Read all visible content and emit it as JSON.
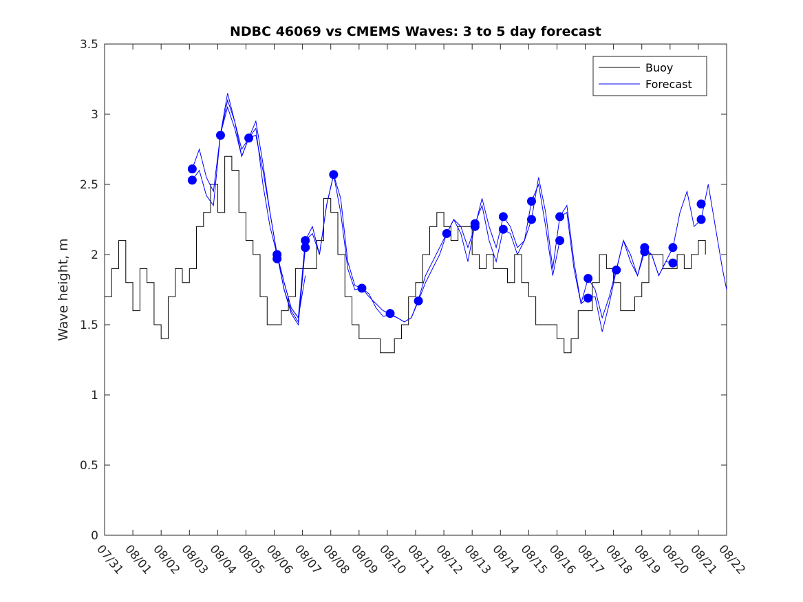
{
  "colors": {
    "buoy": "#000000",
    "forecast": "#0000ff",
    "axis": "#262626",
    "background": "#ffffff"
  },
  "chart_data": {
    "type": "line",
    "title": "NDBC 46069 vs CMEMS Waves: 3 to 5 day forecast",
    "xlabel": "",
    "ylabel": "Wave height, m",
    "xlim": [
      0,
      22
    ],
    "ylim": [
      0,
      3.5
    ],
    "grid": false,
    "legend_position": "top-right",
    "x_tick_labels": [
      "07/31",
      "08/01",
      "08/02",
      "08/03",
      "08/04",
      "08/05",
      "08/06",
      "08/07",
      "08/08",
      "08/09",
      "08/10",
      "08/11",
      "08/12",
      "08/13",
      "08/14",
      "08/15",
      "08/16",
      "08/17",
      "08/18",
      "08/19",
      "08/20",
      "08/21",
      "08/22"
    ],
    "y_ticks": [
      0,
      0.5,
      1,
      1.5,
      2,
      2.5,
      3,
      3.5
    ],
    "y_tick_labels": [
      "0",
      "0.5",
      "1",
      "1.5",
      "2",
      "2.5",
      "3",
      "3.5"
    ],
    "legend": [
      "Buoy",
      "Forecast"
    ],
    "series": [
      {
        "name": "Buoy",
        "note": "hourly observations, x in days since 07/31",
        "x": [
          0,
          0.25,
          0.5,
          0.75,
          1,
          1.25,
          1.5,
          1.75,
          2,
          2.25,
          2.5,
          2.75,
          3,
          3.25,
          3.5,
          3.75,
          4,
          4.25,
          4.5,
          4.75,
          5,
          5.25,
          5.5,
          5.75,
          6,
          6.25,
          6.5,
          6.75,
          7,
          7.25,
          7.5,
          7.75,
          8,
          8.25,
          8.5,
          8.75,
          9,
          9.25,
          9.5,
          9.75,
          10,
          10.25,
          10.5,
          10.75,
          11,
          11.25,
          11.5,
          11.75,
          12,
          12.25,
          12.5,
          12.75,
          13,
          13.25,
          13.5,
          13.75,
          14,
          14.25,
          14.5,
          14.75,
          15,
          15.25,
          15.5,
          15.75,
          16,
          16.25,
          16.5,
          16.75,
          17,
          17.25,
          17.5,
          17.75,
          18,
          18.25,
          18.5,
          18.75,
          19,
          19.25,
          19.5,
          19.75,
          20,
          20.25,
          20.5,
          20.75,
          21,
          21.25
        ],
        "y": [
          1.7,
          1.9,
          2.1,
          1.8,
          1.6,
          1.9,
          1.8,
          1.5,
          1.4,
          1.7,
          1.9,
          1.8,
          1.9,
          2.2,
          2.3,
          2.5,
          2.3,
          2.7,
          2.6,
          2.3,
          2.1,
          2.0,
          1.7,
          1.5,
          1.5,
          1.6,
          1.7,
          1.9,
          1.9,
          1.9,
          2.1,
          2.4,
          2.3,
          2.0,
          1.7,
          1.5,
          1.4,
          1.4,
          1.4,
          1.3,
          1.3,
          1.4,
          1.5,
          1.7,
          1.8,
          2.0,
          2.2,
          2.3,
          2.2,
          2.1,
          2.2,
          2.2,
          2.0,
          1.9,
          2.0,
          1.9,
          1.9,
          1.8,
          2.0,
          1.8,
          1.7,
          1.5,
          1.5,
          1.5,
          1.4,
          1.3,
          1.4,
          1.6,
          1.6,
          1.8,
          2.0,
          1.9,
          1.8,
          1.6,
          1.6,
          1.7,
          1.8,
          2.0,
          2.0,
          1.9,
          1.9,
          2.0,
          1.9,
          2.0,
          2.1,
          2.0
        ]
      },
      {
        "name": "Forecast",
        "note": "overlapping forecast runs",
        "runs": [
          {
            "x": [
              3.1,
              3.35,
              3.6,
              3.85,
              4.1,
              4.35,
              4.6,
              4.85,
              5.1,
              5.35,
              5.6,
              5.85,
              6.1,
              6.35,
              6.6,
              6.85,
              7.1
            ],
            "y": [
              2.53,
              2.6,
              2.42,
              2.35,
              2.86,
              3.05,
              2.9,
              2.7,
              2.83,
              2.85,
              2.6,
              2.3,
              2.0,
              1.8,
              1.62,
              1.55,
              1.85
            ]
          },
          {
            "x": [
              3.1,
              3.35,
              3.6,
              3.85,
              4.1,
              4.35,
              4.6,
              4.85,
              5.1,
              5.35,
              5.6,
              5.85,
              6.1,
              6.35,
              6.6,
              6.85,
              7.1
            ],
            "y": [
              2.61,
              2.75,
              2.55,
              2.45,
              2.86,
              3.15,
              2.95,
              2.75,
              2.83,
              2.95,
              2.65,
              2.3,
              2.0,
              1.75,
              1.58,
              1.5,
              2.05
            ]
          },
          {
            "x": [
              4.1,
              4.35,
              4.6,
              4.85,
              5.1,
              5.35,
              5.6,
              5.85,
              6.1,
              6.35,
              6.6,
              6.85,
              7.1,
              7.35,
              7.6,
              7.85,
              8.1
            ],
            "y": [
              2.85,
              3.1,
              2.95,
              2.7,
              2.83,
              2.9,
              2.5,
              2.2,
              2.0,
              1.75,
              1.6,
              1.52,
              2.1,
              2.2,
              2.0,
              2.35,
              2.57
            ]
          },
          {
            "x": [
              6.1,
              6.35,
              6.6,
              6.85,
              7.1,
              7.35,
              7.6,
              7.85,
              8.1,
              8.35,
              8.6,
              8.85,
              9.1,
              9.35,
              9.6,
              9.85,
              10.1
            ],
            "y": [
              2.0,
              1.8,
              1.62,
              1.55,
              2.1,
              2.15,
              2.0,
              2.35,
              2.57,
              2.3,
              1.9,
              1.75,
              1.76,
              1.7,
              1.65,
              1.6,
              1.58
            ]
          },
          {
            "x": [
              8.1,
              8.35,
              8.6,
              8.85,
              9.1,
              9.35,
              9.6,
              9.85,
              10.1,
              10.35,
              10.6,
              10.85,
              11.1,
              11.35,
              11.6,
              11.85,
              12.1
            ],
            "y": [
              2.57,
              2.4,
              1.95,
              1.78,
              1.76,
              1.72,
              1.62,
              1.56,
              1.57,
              1.55,
              1.52,
              1.55,
              1.67,
              1.8,
              1.9,
              2.0,
              2.15
            ]
          },
          {
            "x": [
              10.1,
              10.35,
              10.6,
              10.85,
              11.1,
              11.35,
              11.6,
              11.85,
              12.1,
              12.35,
              12.6,
              12.85,
              13.1,
              13.35,
              13.6,
              13.85,
              14.1
            ],
            "y": [
              1.58,
              1.55,
              1.52,
              1.55,
              1.68,
              1.85,
              1.95,
              2.05,
              2.15,
              2.25,
              2.2,
              2.05,
              2.2,
              2.4,
              2.2,
              2.05,
              2.27
            ]
          },
          {
            "x": [
              12.1,
              12.35,
              12.6,
              12.85,
              13.1,
              13.35,
              13.6,
              13.85,
              14.1,
              14.35,
              14.6,
              14.85,
              15.1,
              15.35,
              15.6,
              15.85,
              16.1
            ],
            "y": [
              2.15,
              2.25,
              2.15,
              1.95,
              2.22,
              2.35,
              2.1,
              1.95,
              2.18,
              2.15,
              2.0,
              2.1,
              2.38,
              2.5,
              2.2,
              1.85,
              2.1
            ]
          },
          {
            "x": [
              14.1,
              14.35,
              14.6,
              14.85,
              15.1,
              15.35,
              15.6,
              15.85,
              16.1,
              16.35,
              16.6,
              16.85,
              17.1,
              17.35,
              17.6,
              17.85,
              18.1
            ],
            "y": [
              2.27,
              2.2,
              2.05,
              2.1,
              2.25,
              2.55,
              2.3,
              1.9,
              2.27,
              2.3,
              1.9,
              1.65,
              1.83,
              1.75,
              1.55,
              1.7,
              1.9
            ]
          },
          {
            "x": [
              16.1,
              16.35,
              16.6,
              16.85,
              17.1,
              17.35,
              17.6,
              17.85,
              18.1,
              18.35,
              18.6,
              18.85,
              19.1,
              19.35,
              19.6,
              19.85,
              20.1
            ],
            "y": [
              2.27,
              2.35,
              1.95,
              1.65,
              1.69,
              1.7,
              1.45,
              1.65,
              1.89,
              2.1,
              2.0,
              1.85,
              2.05,
              2.0,
              1.85,
              1.95,
              1.94
            ]
          },
          {
            "x": [
              18.1,
              18.35,
              18.6,
              18.85,
              19.1,
              19.35,
              19.6,
              19.85,
              20.1,
              20.35,
              20.6,
              20.85,
              21.1,
              21.35,
              21.6,
              21.85,
              22.0
            ],
            "y": [
              1.89,
              2.1,
              1.95,
              1.85,
              2.02,
              2.0,
              1.85,
              1.95,
              2.05,
              2.3,
              2.45,
              2.2,
              2.25,
              2.5,
              2.2,
              1.9,
              1.75
            ]
          }
        ],
        "markers": {
          "x": [
            3.1,
            3.1,
            4.1,
            5.1,
            6.1,
            6.1,
            7.1,
            7.1,
            8.1,
            9.1,
            10.1,
            11.1,
            12.1,
            13.1,
            13.1,
            14.1,
            14.1,
            15.1,
            15.1,
            16.1,
            16.1,
            17.1,
            17.1,
            18.1,
            19.1,
            19.1,
            20.1,
            20.1,
            21.1,
            21.1
          ],
          "y": [
            2.53,
            2.61,
            2.85,
            2.83,
            2.0,
            1.97,
            2.05,
            2.1,
            2.57,
            1.76,
            1.58,
            1.67,
            2.15,
            2.2,
            2.22,
            2.18,
            2.27,
            2.25,
            2.38,
            2.1,
            2.27,
            1.69,
            1.83,
            1.89,
            2.02,
            2.05,
            1.94,
            2.05,
            2.25,
            2.36
          ]
        }
      }
    ]
  }
}
